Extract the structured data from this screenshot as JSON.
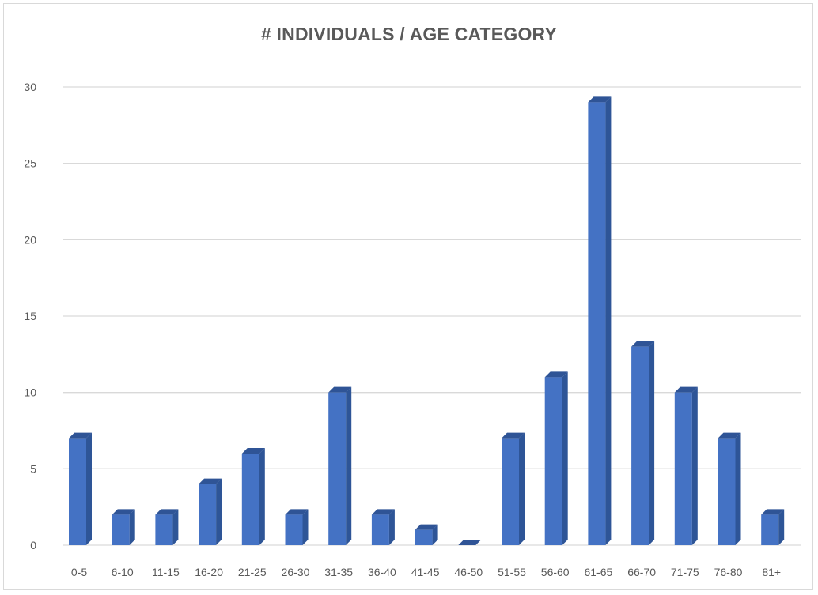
{
  "chart_data": {
    "type": "bar",
    "title": "# INDIVIDUALS / AGE CATEGORY",
    "xlabel": "",
    "ylabel": "",
    "categories": [
      "0-5",
      "6-10",
      "11-15",
      "16-20",
      "21-25",
      "26-30",
      "31-35",
      "36-40",
      "41-45",
      "46-50",
      "51-55",
      "56-60",
      "61-65",
      "66-70",
      "71-75",
      "76-80",
      "81+"
    ],
    "values": [
      7,
      2,
      2,
      4,
      6,
      2,
      10,
      2,
      1,
      0,
      7,
      11,
      29,
      13,
      10,
      7,
      2
    ],
    "ylim": [
      0,
      30
    ],
    "yticks": [
      "0",
      "5",
      "10",
      "15",
      "20",
      "25",
      "30"
    ],
    "grid": true,
    "legend": "none",
    "bar_style": "3d-column",
    "colors": {
      "bar_front": "#4472c4",
      "bar_side": "#2e5597",
      "bar_top": "#2f5496",
      "grid": "#d9d9d9",
      "text": "#595959"
    }
  }
}
